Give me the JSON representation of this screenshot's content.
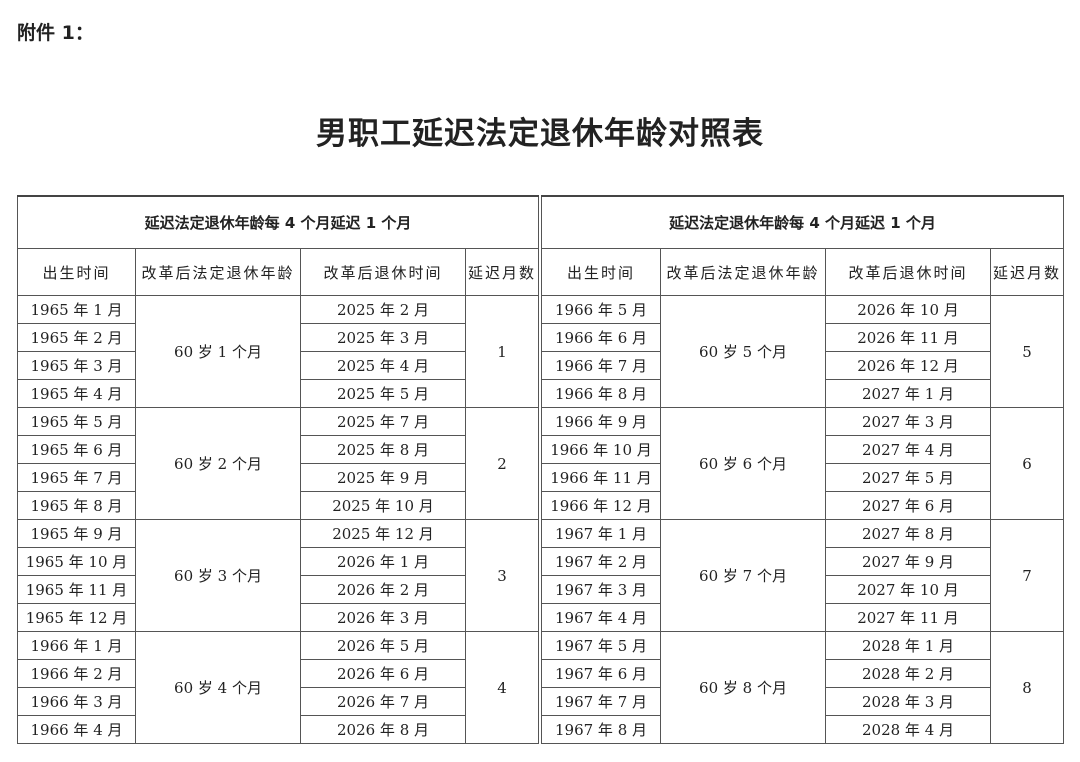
{
  "attachment_label": "附件 1：",
  "title": "男职工延迟法定退休年龄对照表",
  "tables": [
    {
      "group_header": "延迟法定退休年龄每 4 个月延迟 1 个月",
      "columns": [
        "出生时间",
        "改革后法定退休年龄",
        "改革后退休时间",
        "延迟月数"
      ],
      "groups": [
        {
          "age": "60 岁 1 个月",
          "delay": "1",
          "birth": [
            "1965 年 1 月",
            "1965 年 2 月",
            "1965 年 3 月",
            "1965 年 4 月"
          ],
          "retire": [
            "2025 年 2 月",
            "2025 年 3 月",
            "2025 年 4 月",
            "2025 年 5 月"
          ]
        },
        {
          "age": "60 岁 2 个月",
          "delay": "2",
          "birth": [
            "1965 年 5 月",
            "1965 年 6 月",
            "1965 年 7 月",
            "1965 年 8 月"
          ],
          "retire": [
            "2025 年 7 月",
            "2025 年 8 月",
            "2025 年 9 月",
            "2025 年 10 月"
          ]
        },
        {
          "age": "60 岁 3 个月",
          "delay": "3",
          "birth": [
            "1965 年 9 月",
            "1965 年 10 月",
            "1965 年 11 月",
            "1965 年 12 月"
          ],
          "retire": [
            "2025 年 12 月",
            "2026 年 1 月",
            "2026 年 2 月",
            "2026 年 3 月"
          ]
        },
        {
          "age": "60 岁 4 个月",
          "delay": "4",
          "birth": [
            "1966 年 1 月",
            "1966 年 2 月",
            "1966 年 3 月",
            "1966 年 4 月"
          ],
          "retire": [
            "2026 年 5 月",
            "2026 年 6 月",
            "2026 年 7 月",
            "2026 年 8 月"
          ]
        }
      ]
    },
    {
      "group_header": "延迟法定退休年龄每 4 个月延迟 1 个月",
      "columns": [
        "出生时间",
        "改革后法定退休年龄",
        "改革后退休时间",
        "延迟月数"
      ],
      "groups": [
        {
          "age": "60 岁 5 个月",
          "delay": "5",
          "birth": [
            "1966 年 5 月",
            "1966 年 6 月",
            "1966 年 7 月",
            "1966 年 8 月"
          ],
          "retire": [
            "2026 年 10 月",
            "2026 年 11 月",
            "2026 年 12 月",
            "2027 年 1 月"
          ]
        },
        {
          "age": "60 岁 6 个月",
          "delay": "6",
          "birth": [
            "1966 年 9 月",
            "1966 年 10 月",
            "1966 年 11 月",
            "1966 年 12 月"
          ],
          "retire": [
            "2027 年 3 月",
            "2027 年 4 月",
            "2027 年 5 月",
            "2027 年 6 月"
          ]
        },
        {
          "age": "60 岁 7 个月",
          "delay": "7",
          "birth": [
            "1967 年 1 月",
            "1967 年 2 月",
            "1967 年 3 月",
            "1967 年 4 月"
          ],
          "retire": [
            "2027 年 8 月",
            "2027 年 9 月",
            "2027 年 10 月",
            "2027 年 11 月"
          ]
        },
        {
          "age": "60 岁 8 个月",
          "delay": "8",
          "birth": [
            "1967 年 5 月",
            "1967 年 6 月",
            "1967 年 7 月",
            "1967 年 8 月"
          ],
          "retire": [
            "2028 年 1 月",
            "2028 年 2 月",
            "2028 年 3 月",
            "2028 年 4 月"
          ]
        }
      ]
    }
  ]
}
